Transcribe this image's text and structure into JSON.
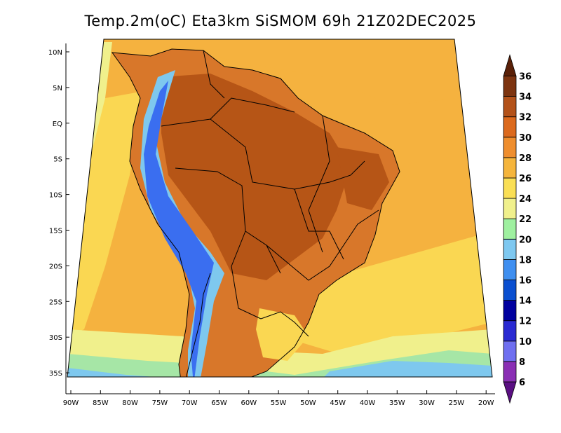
{
  "title": "Temp.2m(oC) Eta3km SiSMOM 69h 21Z02DEC2025",
  "lat_labels": [
    "10N",
    "5N",
    "EQ",
    "5S",
    "10S",
    "15S",
    "20S",
    "25S",
    "30S",
    "35S"
  ],
  "lon_labels": [
    "90W",
    "85W",
    "80W",
    "75W",
    "70W",
    "65W",
    "60W",
    "55W",
    "50W",
    "45W",
    "40W",
    "35W",
    "30W",
    "25W",
    "20W"
  ],
  "colorbar": {
    "labels": [
      "6",
      "8",
      "10",
      "12",
      "14",
      "16",
      "18",
      "20",
      "22",
      "24",
      "26",
      "28",
      "30",
      "32",
      "34",
      "36"
    ],
    "colors": [
      "#5a0f82",
      "#8a2fb4",
      "#6f6ff0",
      "#2a2ad2",
      "#00009f",
      "#0a4fd0",
      "#3f8ff0",
      "#7ec8f0",
      "#9ff0a0",
      "#f0f08c",
      "#fadf55",
      "#f5b53c",
      "#ef8e2e",
      "#dc6a1e",
      "#b3521a",
      "#7d3410",
      "#5a2008"
    ],
    "low_arrow_color": "#5a0f82",
    "high_arrow_color": "#5a2008"
  },
  "palette": {
    "ocean_warm": "#f5b23f",
    "ocean_mild": "#fad752",
    "ocean_cool": "#f0f08c",
    "ocean_cooler": "#a6e6a6",
    "ocean_cold": "#7ec8ee",
    "land_hot": "#b65516",
    "land_warm": "#d8772a",
    "andes_cold": "#3a6ef0"
  }
}
